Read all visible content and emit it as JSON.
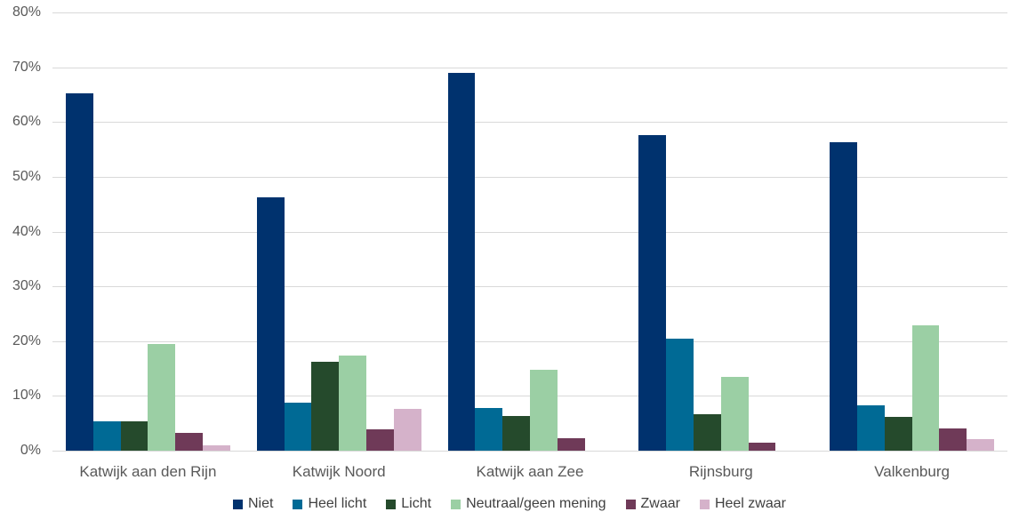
{
  "chart_data": {
    "type": "bar",
    "title": "",
    "xlabel": "",
    "ylabel": "",
    "ylim": [
      0,
      80
    ],
    "y_tick_labels": [
      "0%",
      "10%",
      "20%",
      "30%",
      "40%",
      "50%",
      "60%",
      "70%",
      "80%"
    ],
    "grid": true,
    "legend_position": "bottom",
    "categories": [
      "Katwijk aan den Rijn",
      "Katwijk Noord",
      "Katwijk aan Zee",
      "Rijnsburg",
      "Valkenburg"
    ],
    "series": [
      {
        "name": "Niet",
        "color": "#00326e",
        "values": [
          65.2,
          46.3,
          69.0,
          57.6,
          56.3
        ]
      },
      {
        "name": "Heel licht",
        "color": "#006a95",
        "values": [
          5.4,
          8.7,
          7.8,
          20.5,
          8.3
        ]
      },
      {
        "name": "Licht",
        "color": "#254a2c",
        "values": [
          5.4,
          16.3,
          6.3,
          6.7,
          6.2
        ]
      },
      {
        "name": "Neutraal/geen mening",
        "color": "#9bcfa4",
        "values": [
          19.5,
          17.3,
          14.7,
          13.5,
          22.8
        ]
      },
      {
        "name": "Zwaar",
        "color": "#6f3a58",
        "values": [
          3.3,
          3.9,
          2.3,
          1.5,
          4.1
        ]
      },
      {
        "name": "Heel zwaar",
        "color": "#d5b2ca",
        "values": [
          1.0,
          7.7,
          0,
          0,
          2.1
        ]
      }
    ],
    "style": {
      "gridline_color": "#d9d9d9",
      "tick_label_color": "#595959",
      "category_label_color": "#595959",
      "legend_text_color": "#404040",
      "background_color": "#ffffff"
    }
  }
}
